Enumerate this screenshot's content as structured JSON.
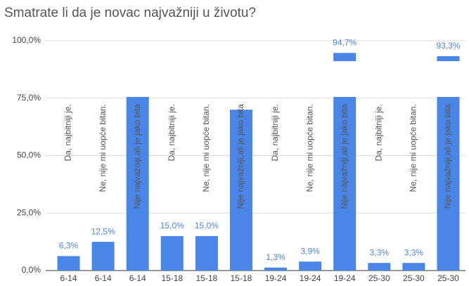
{
  "chart_data": {
    "type": "bar",
    "title": "Smatrate li da je novac najvažniji u životu?",
    "categories": [
      "6-14",
      "6-14",
      "6-14",
      "15-18",
      "15-18",
      "15-18",
      "19-24",
      "19-24",
      "19-24",
      "25-30",
      "25-30",
      "25-30"
    ],
    "values": [
      6.3,
      12.5,
      81.2,
      15.0,
      15.0,
      70.0,
      1.3,
      3.9,
      94.7,
      3.3,
      3.3,
      93.3
    ],
    "value_labels": [
      "6,3%",
      "12,5%",
      null,
      "15,0%",
      "15,0%",
      null,
      "1,3%",
      "3,9%",
      "94,7%",
      "3,3%",
      "3,3%",
      "93,3%"
    ],
    "bar_labels": [
      "Da, najbitniji je.",
      "Ne, nije mi uopće bitan.",
      "Nije najvažniji,ali je jako bita",
      "Da, najbitniji je.",
      "Ne, nije mi uopće bitan.",
      "Nije najvažniji,ali je jako bita",
      "Da, najbitniji je.",
      "Ne, nije mi uopće bitan.",
      "Nije najvažniji,ali je jako bita",
      "Da, najbitniji je.",
      "Ne, nije mi uopće bitan.",
      "Nije najvažniji,ali je jako bita"
    ],
    "color": "#4a86e8",
    "ylim": [
      0,
      100
    ],
    "yticks": [
      {
        "value": 0,
        "label": "0,0%"
      },
      {
        "value": 25,
        "label": "25,0%"
      },
      {
        "value": 50,
        "label": "50,0%"
      },
      {
        "value": 75,
        "label": "75,0%"
      },
      {
        "value": 100,
        "label": "100,0%"
      }
    ],
    "grid": true
  }
}
